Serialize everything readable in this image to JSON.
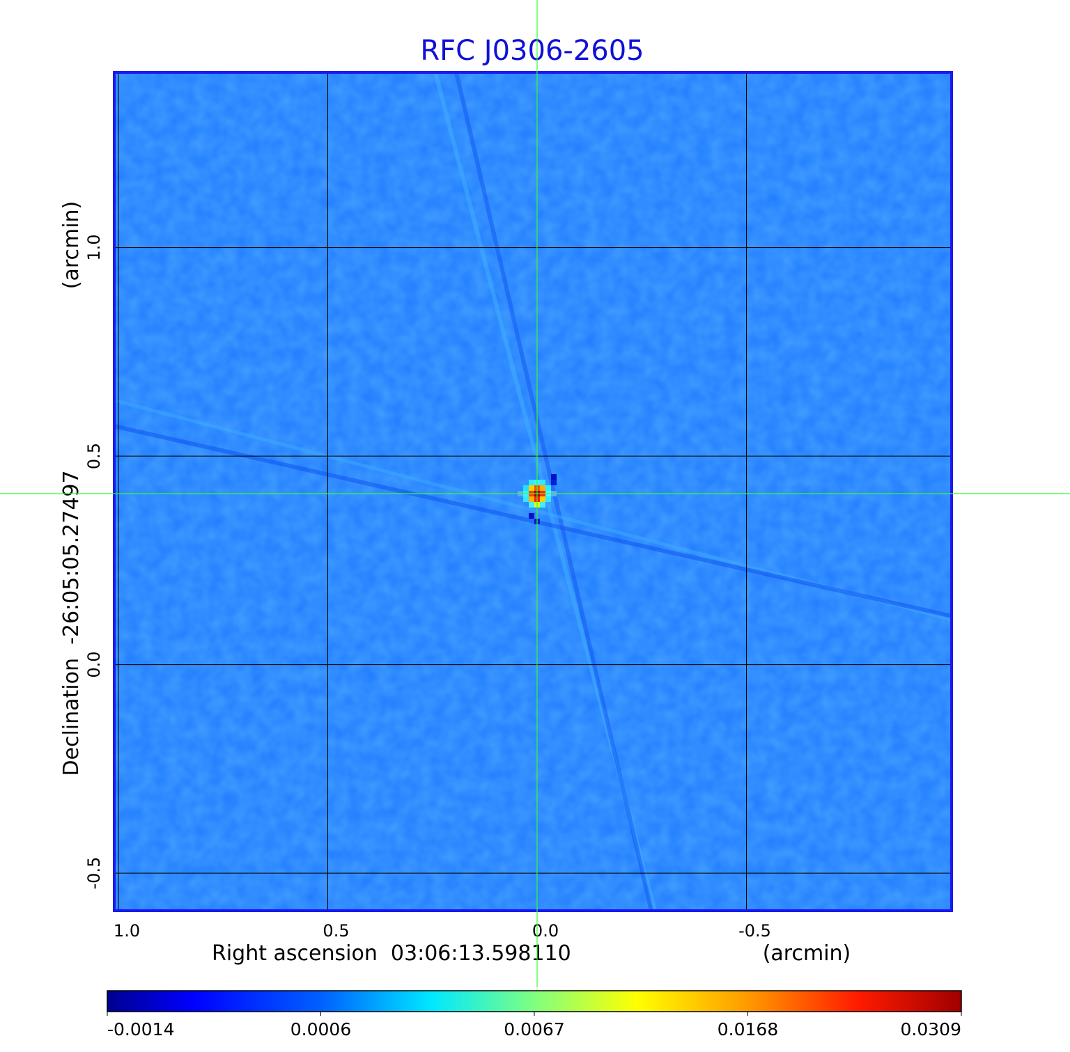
{
  "chart_data": {
    "type": "heatmap",
    "title": "RFC J0306-2605",
    "xlabel": "Right ascension  03:06:13.598110",
    "xunit": "(arcmin)",
    "ylabel": "Declination  -26:05:05.27497",
    "yunit": "(arcmin)",
    "x_ticks": [
      "1.0",
      "0.5",
      "0.0",
      "-0.5"
    ],
    "y_ticks": [
      "1.0",
      "0.5",
      "0.0",
      "-0.5"
    ],
    "x_tick_values": [
      1.0,
      0.5,
      0.0,
      -0.5
    ],
    "y_tick_values": [
      1.0,
      0.5,
      0.0,
      -0.5
    ],
    "xlim": [
      1.01,
      -0.99
    ],
    "ylim": [
      -0.59,
      1.42
    ],
    "grid": true,
    "crosshair": {
      "x": 0.0,
      "y": 0.41,
      "color": "#33ff33"
    },
    "peak": {
      "x": 0.0,
      "y": 0.41
    },
    "colormap": "jet",
    "colorbar": {
      "orientation": "horizontal",
      "placement": "bottom",
      "tick_labels": [
        "-0.0014",
        "0.0006",
        "0.0067",
        "0.0168",
        "0.0309"
      ],
      "tick_values": [
        -0.0014,
        0.0006,
        0.0067,
        0.0168,
        0.0309
      ]
    },
    "colors": {
      "title": "#1010d8",
      "frame": "#1a1aee",
      "background_map": "#1f7bff"
    }
  }
}
